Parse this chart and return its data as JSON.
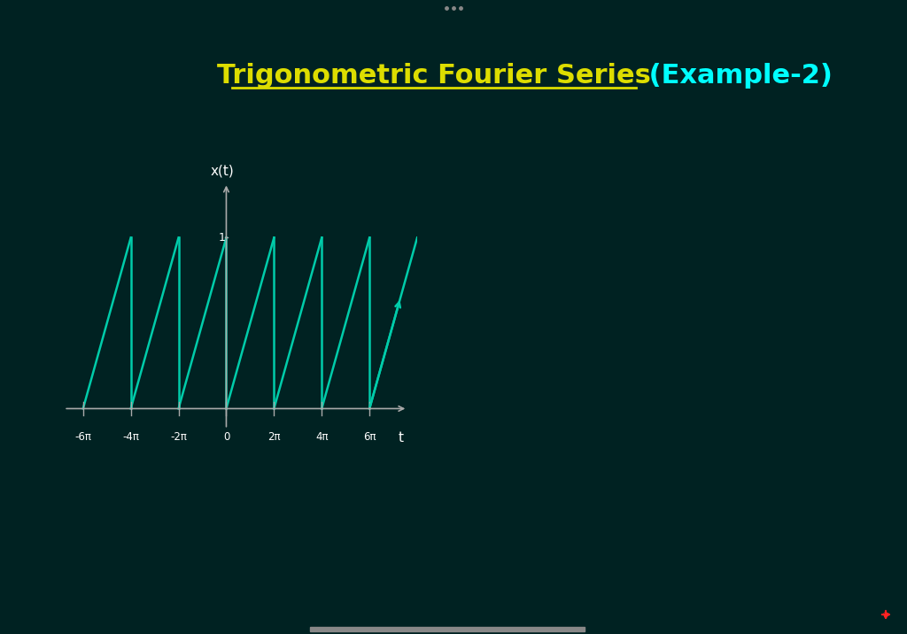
{
  "bg_color": "#003333",
  "title_yellow": "Trigonometric Fourier Series",
  "title_cyan": " (Example-2)",
  "title_fontsize": 22,
  "wave_color": "#00CCAA",
  "axis_color": "#AAAAAA",
  "label_color": "#FFFFFF",
  "period": 6.283185307179586,
  "ylabel": "x(t)",
  "xlabel": "t",
  "xticks_labels": [
    "-6π",
    "-4π",
    "-2π",
    "0",
    "2π",
    "4π",
    "6π"
  ],
  "xticks_values": [
    -18.84955592153876,
    -12.566370614359172,
    -6.283185307179586,
    0,
    6.283185307179586,
    12.566370614359172,
    18.84955592153876
  ],
  "figure_bg": "#002222",
  "dots_color": "#888888",
  "title_yellow_color": "#DDDD00",
  "title_cyan_color": "#00FFFF",
  "scroll_bar_color": "#888888",
  "red_cross_color": "#FF2222"
}
